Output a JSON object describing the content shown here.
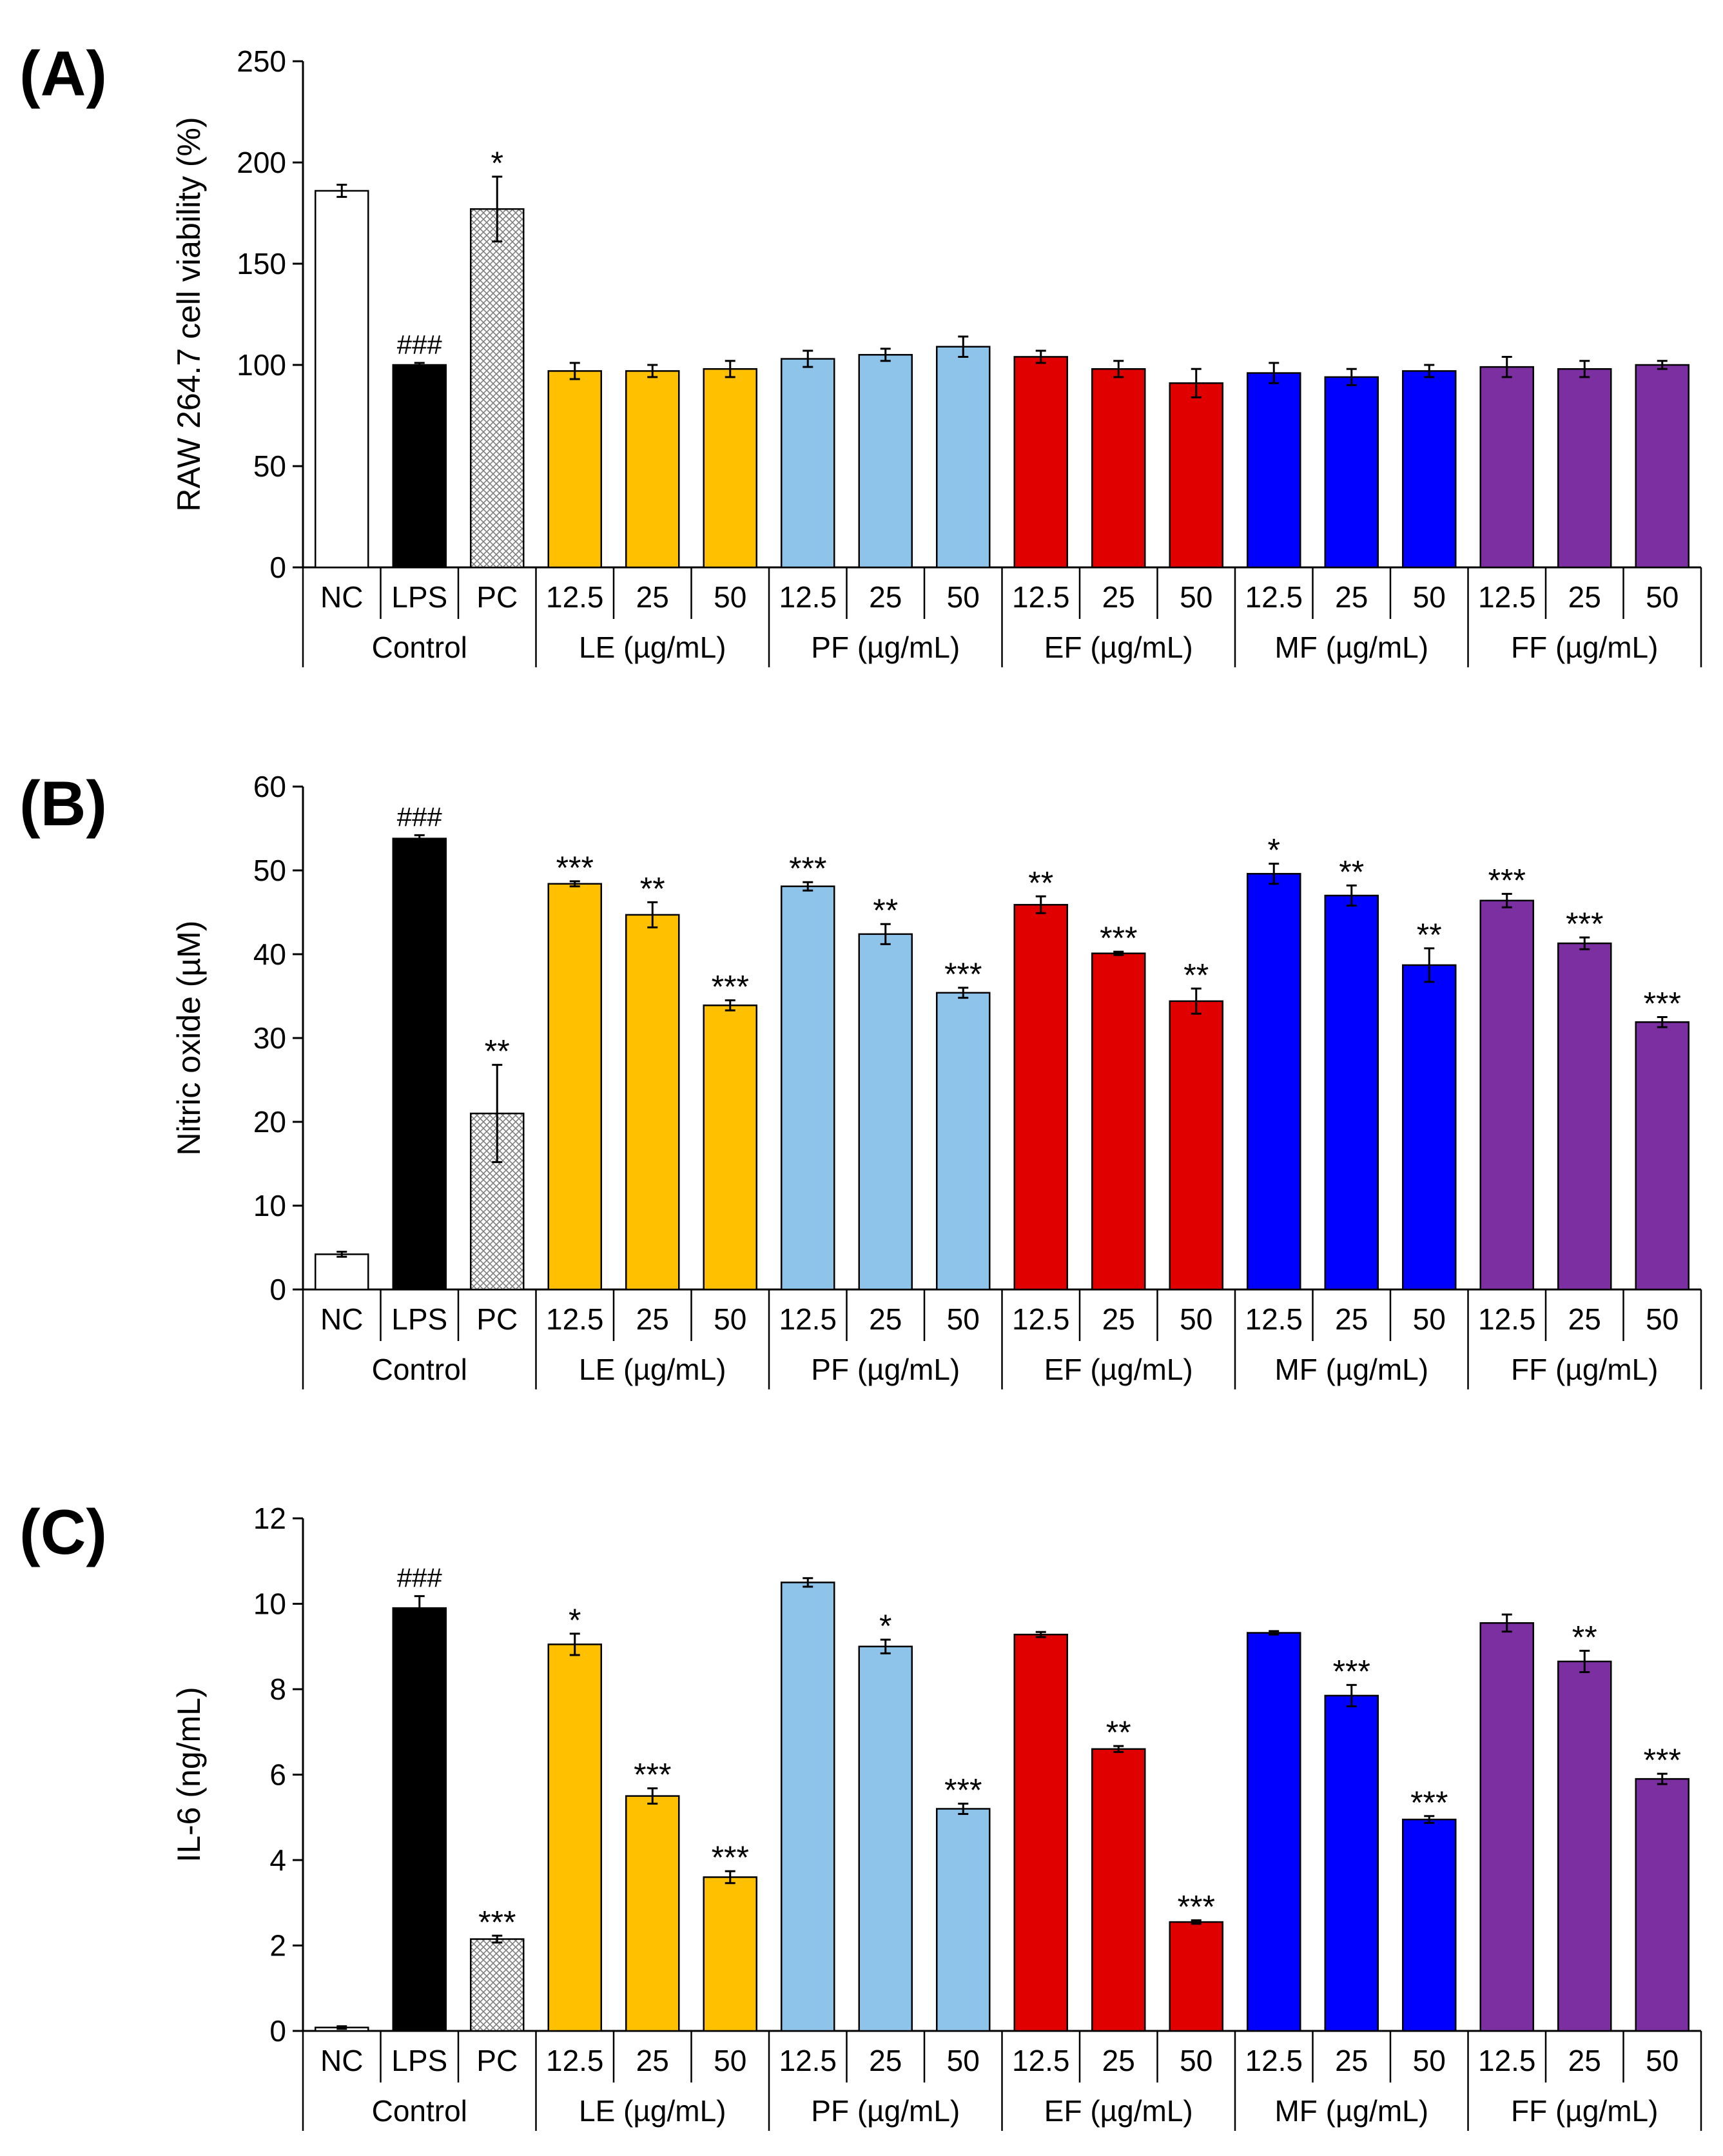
{
  "colors": {
    "nc": "#ffffff",
    "lps": "#000000",
    "pc_hatch": "#7f7f7f",
    "LE": "#ffc000",
    "PF": "#8ec3ea",
    "EF": "#e00000",
    "MF": "#0000ff",
    "FF": "#7b2fa0"
  },
  "categories": [
    "NC",
    "LPS",
    "PC",
    "12.5",
    "25",
    "50",
    "12.5",
    "25",
    "50",
    "12.5",
    "25",
    "50",
    "12.5",
    "25",
    "50",
    "12.5",
    "25",
    "50"
  ],
  "group_labels": [
    "Control",
    "LE (µg/mL)",
    "PF (µg/mL)",
    "EF (µg/mL)",
    "MF (µg/mL)",
    "FF (µg/mL)"
  ],
  "chart_data": [
    {
      "type": "bar",
      "panel_label": "(A)",
      "title": "",
      "xlabel": "",
      "ylabel": "RAW 264.7 cell viability (%)",
      "ylim": [
        0,
        250
      ],
      "yticks": [
        "0",
        "50",
        "100",
        "150",
        "200",
        "250"
      ],
      "values": [
        186,
        100,
        177,
        97,
        97,
        98,
        103,
        105,
        109,
        104,
        98,
        91,
        96,
        94,
        97,
        99,
        98,
        100
      ],
      "errors": [
        3,
        1,
        16,
        4,
        3,
        4,
        4,
        3,
        5,
        3,
        4,
        7,
        5,
        4,
        3,
        5,
        4,
        2
      ],
      "annotations": [
        "",
        "###",
        "*",
        "",
        "",
        "",
        "",
        "",
        "",
        "",
        "",
        "",
        "",
        "",
        "",
        "",
        "",
        ""
      ]
    },
    {
      "type": "bar",
      "panel_label": "(B)",
      "title": "",
      "xlabel": "",
      "ylabel": "Nitric oxide (µM)",
      "ylim": [
        0,
        60
      ],
      "yticks": [
        "0",
        "10",
        "20",
        "30",
        "40",
        "50",
        "60"
      ],
      "values": [
        4.2,
        53.8,
        21.0,
        48.4,
        44.7,
        33.9,
        48.1,
        42.4,
        35.4,
        45.9,
        40.1,
        34.4,
        49.6,
        47.0,
        38.7,
        46.4,
        41.3,
        31.9
      ],
      "errors": [
        0.3,
        0.4,
        5.8,
        0.3,
        1.5,
        0.6,
        0.5,
        1.2,
        0.6,
        1.0,
        0.2,
        1.5,
        1.2,
        1.2,
        2.0,
        0.8,
        0.7,
        0.6
      ],
      "annotations": [
        "",
        "###",
        "**",
        "***",
        "**",
        "***",
        "***",
        "**",
        "***",
        "**",
        "***",
        "**",
        "*",
        "**",
        "**",
        "***",
        "***",
        "***"
      ]
    },
    {
      "type": "bar",
      "panel_label": "(C)",
      "title": "",
      "xlabel": "",
      "ylabel": "IL-6 (ng/mL)",
      "ylim": [
        0,
        12
      ],
      "yticks": [
        "0",
        "2",
        "4",
        "6",
        "8",
        "10",
        "12"
      ],
      "values": [
        0.08,
        9.9,
        2.15,
        9.05,
        5.5,
        3.6,
        10.5,
        9.0,
        5.2,
        9.28,
        6.6,
        2.55,
        9.32,
        7.85,
        4.95,
        9.55,
        8.65,
        5.9
      ],
      "errors": [
        0.03,
        0.28,
        0.08,
        0.25,
        0.18,
        0.14,
        0.1,
        0.16,
        0.12,
        0.06,
        0.07,
        0.04,
        0.04,
        0.25,
        0.08,
        0.2,
        0.25,
        0.12
      ],
      "annotations": [
        "",
        "###",
        "***",
        "*",
        "***",
        "***",
        "",
        "*",
        "***",
        "",
        "**",
        "***",
        "",
        "***",
        "***",
        "",
        "**",
        "***"
      ]
    }
  ]
}
